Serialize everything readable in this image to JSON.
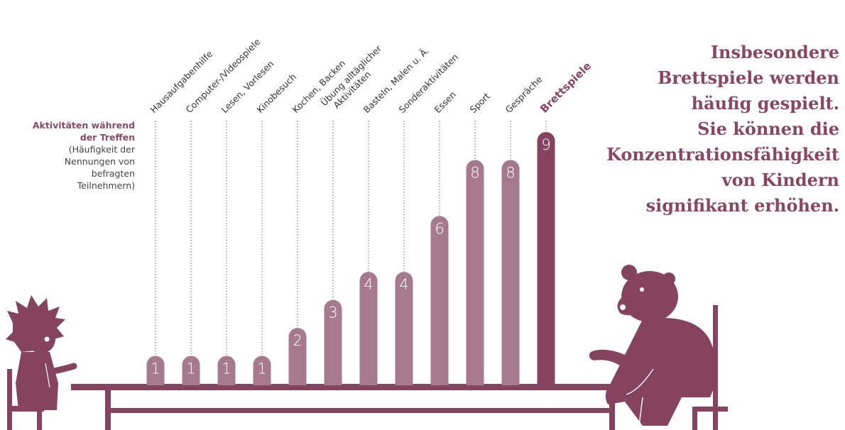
{
  "chart_data": {
    "type": "bar",
    "title": "Aktivitäten während der Treffen",
    "subtitle": "(Häufigkeit der Nennungen von befragten Teilnehmern)",
    "categories": [
      "Hausaufgabenhilfe",
      "Computer-/Videospiele",
      "Lesen, Vorlesen",
      "Kinobesuch",
      "Kochen, Backen",
      "Übung alltäglicher Aktivitäten",
      "Basteln, Malen u. Ä.",
      "Sonderaktivitäten",
      "Essen",
      "Sport",
      "Gespräche",
      "Brettspiele"
    ],
    "values": [
      1,
      1,
      1,
      1,
      2,
      3,
      4,
      4,
      6,
      8,
      8,
      9
    ],
    "highlight_category": "Brettspiele",
    "ylim": [
      0,
      9
    ],
    "colors": {
      "bar": "#a67a8c",
      "highlight": "#864360",
      "text": "#8a4563"
    }
  },
  "side_label": {
    "strong": [
      "Aktivitäten während",
      "der Treffen"
    ],
    "sub": [
      "(Häufigkeit der",
      "Nennungen von",
      "befragten",
      "Teilnehmern)"
    ]
  },
  "headline": {
    "lines": [
      "Insbesondere",
      "Brettspiele werden",
      "häufig gespielt.",
      "Sie können die",
      "Konzentrationsfähigkeit",
      "von Kindern",
      "signifikant erhöhen."
    ]
  },
  "illustration": {
    "left": "child-icon",
    "right": "bear-icon",
    "furniture": "table-icon"
  }
}
